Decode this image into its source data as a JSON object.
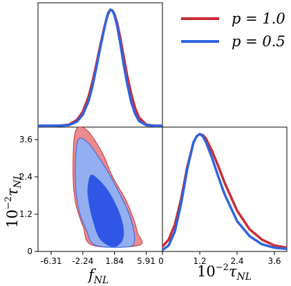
{
  "chart_data": [
    {
      "type": "line",
      "panel": "marginal-fnl",
      "x": [
        -8.0,
        -6.31,
        -5.0,
        -4.0,
        -3.0,
        -2.24,
        -1.5,
        -1.0,
        -0.5,
        0.0,
        0.5,
        0.8,
        1.0,
        1.3,
        1.6,
        1.84,
        2.2,
        2.6,
        3.0,
        3.5,
        4.0,
        4.5,
        5.0,
        5.91,
        7.0,
        8.0
      ],
      "series": [
        {
          "name": "p = 1.0",
          "color": "#cc2a36",
          "values": [
            0.0,
            0.0,
            0.002,
            0.01,
            0.05,
            0.12,
            0.25,
            0.38,
            0.53,
            0.69,
            0.84,
            0.92,
            0.96,
            1.0,
            0.99,
            0.96,
            0.88,
            0.75,
            0.6,
            0.42,
            0.27,
            0.15,
            0.07,
            0.01,
            0.0,
            0.0
          ]
        },
        {
          "name": "p = 0.5",
          "color": "#2f64e0",
          "values": [
            0.0,
            0.0,
            0.001,
            0.006,
            0.035,
            0.095,
            0.21,
            0.34,
            0.5,
            0.67,
            0.83,
            0.92,
            0.97,
            1.0,
            0.99,
            0.95,
            0.85,
            0.7,
            0.53,
            0.35,
            0.2,
            0.1,
            0.04,
            0.005,
            0.0,
            0.0
          ]
        }
      ]
    },
    {
      "type": "line",
      "panel": "marginal-taunl",
      "x": [
        0.0,
        0.2,
        0.4,
        0.6,
        0.8,
        1.0,
        1.1,
        1.2,
        1.3,
        1.4,
        1.6,
        1.8,
        2.0,
        2.4,
        2.8,
        3.2,
        3.6,
        4.0
      ],
      "series": [
        {
          "name": "p = 1.0",
          "color": "#cc2a36",
          "values": [
            0.03,
            0.09,
            0.22,
            0.44,
            0.72,
            0.93,
            0.98,
            1.0,
            0.99,
            0.96,
            0.85,
            0.72,
            0.58,
            0.34,
            0.18,
            0.09,
            0.04,
            0.02
          ]
        },
        {
          "name": "p = 0.5",
          "color": "#2f64e0",
          "values": [
            0.0,
            0.04,
            0.16,
            0.4,
            0.7,
            0.93,
            0.98,
            1.0,
            0.98,
            0.93,
            0.79,
            0.63,
            0.48,
            0.25,
            0.12,
            0.05,
            0.02,
            0.01
          ]
        }
      ]
    },
    {
      "type": "contour",
      "panel": "joint",
      "xlabel": "f_{NL}",
      "ylabel": "10^{-2}τ_{NL}",
      "xlim": [
        -8.0,
        8.0
      ],
      "ylim": [
        0.0,
        4.0
      ],
      "xticks": [
        "-6.31",
        "-2.24",
        "1.84",
        "5.91"
      ],
      "xtick_values": [
        -6.31,
        -2.24,
        1.84,
        5.91
      ],
      "yticks": [
        "0",
        "1.2",
        "2.4",
        "3.6"
      ],
      "ytick_values": [
        0,
        1.2,
        2.4,
        3.6
      ],
      "contours": [
        {
          "series": "p = 1.0",
          "level": "outer",
          "color": "#ec8a8e",
          "points": [
            [
              -3.2,
              3.85
            ],
            [
              -1.8,
              3.92
            ],
            [
              0.2,
              3.2
            ],
            [
              1.6,
              2.4
            ],
            [
              3.2,
              1.7
            ],
            [
              4.2,
              1.1
            ],
            [
              4.8,
              0.6
            ],
            [
              5.0,
              0.2
            ],
            [
              -1.0,
              0.2
            ],
            [
              -2.2,
              0.8
            ],
            [
              -3.2,
              1.6
            ],
            [
              -3.5,
              2.6
            ]
          ]
        },
        {
          "series": "p = 1.0",
          "level": "inner",
          "color": "#e26c73",
          "points": [
            [
              -2.0,
              3.1
            ],
            [
              -1.0,
              3.0
            ],
            [
              0.5,
              2.5
            ],
            [
              1.8,
              1.9
            ],
            [
              3.0,
              1.3
            ],
            [
              3.6,
              0.8
            ],
            [
              3.8,
              0.4
            ],
            [
              2.8,
              0.2
            ],
            [
              0.5,
              0.2
            ],
            [
              -0.6,
              0.6
            ],
            [
              -1.6,
              1.3
            ],
            [
              -2.4,
              2.2
            ]
          ]
        },
        {
          "series": "p = 0.5",
          "level": "outer",
          "color": "#94aef2",
          "points": [
            [
              -2.9,
              3.55
            ],
            [
              -1.6,
              3.5
            ],
            [
              0.4,
              2.8
            ],
            [
              2.0,
              2.1
            ],
            [
              3.4,
              1.4
            ],
            [
              4.2,
              0.8
            ],
            [
              4.4,
              0.35
            ],
            [
              3.6,
              0.15
            ],
            [
              -0.6,
              0.2
            ],
            [
              -1.8,
              0.7
            ],
            [
              -2.8,
              1.4
            ],
            [
              -3.2,
              2.4
            ]
          ]
        },
        {
          "series": "p = 0.5",
          "level": "inner",
          "color": "#3156e6",
          "points": [
            [
              -1.2,
              2.45
            ],
            [
              -0.2,
              2.3
            ],
            [
              1.0,
              1.95
            ],
            [
              2.0,
              1.5
            ],
            [
              2.7,
              1.05
            ],
            [
              3.0,
              0.6
            ],
            [
              2.7,
              0.3
            ],
            [
              1.6,
              0.15
            ],
            [
              0.0,
              0.4
            ],
            [
              -0.8,
              0.9
            ],
            [
              -1.4,
              1.5
            ],
            [
              -1.6,
              2.0
            ]
          ]
        }
      ]
    },
    {
      "type": "line",
      "panel": "marginal-taunl-axis",
      "xlabel": "10^{-2}τ_{NL}",
      "xlim": [
        0.0,
        4.0
      ],
      "xticks": [
        "0",
        "1.2",
        "2.4",
        "3.6"
      ],
      "xtick_values": [
        0,
        1.2,
        2.4,
        3.6
      ]
    }
  ],
  "legend": {
    "position": "top-right",
    "entries": [
      {
        "label": "p = 1.0",
        "color": "#cc2a36"
      },
      {
        "label": "p = 0.5",
        "color": "#2f64e0"
      }
    ]
  }
}
